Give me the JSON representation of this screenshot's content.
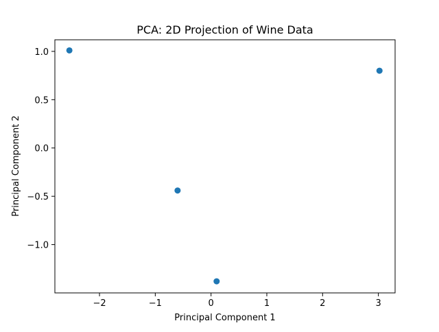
{
  "chart_data": {
    "type": "scatter",
    "title": "PCA: 2D Projection of Wine Data",
    "xlabel": "Principal Component 1",
    "ylabel": "Principal Component 2",
    "xlim": [
      -2.8,
      3.3
    ],
    "ylim": [
      -1.5,
      1.12
    ],
    "xticks": [
      -2,
      -1,
      0,
      1,
      2,
      3
    ],
    "yticks": [
      -1.0,
      -0.5,
      0.0,
      0.5,
      1.0
    ],
    "xtick_labels": [
      "−2",
      "−1",
      "0",
      "1",
      "2",
      "3"
    ],
    "ytick_labels": [
      "−1.0",
      "−0.5",
      "0.0",
      "0.5",
      "1.0"
    ],
    "grid": false,
    "marker_color": "#1f77b4",
    "points": [
      {
        "x": -2.54,
        "y": 1.01
      },
      {
        "x": 3.02,
        "y": 0.8
      },
      {
        "x": -0.6,
        "y": -0.44
      },
      {
        "x": 0.1,
        "y": -1.38
      }
    ]
  }
}
